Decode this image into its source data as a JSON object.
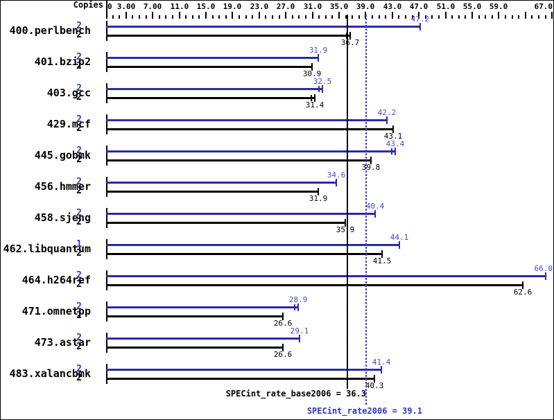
{
  "chart_data": {
    "type": "bar",
    "orientation": "horizontal",
    "copies_header": "Copies",
    "axis": {
      "min": 0,
      "max": 67,
      "minor_tick_step": 1,
      "labels": [
        {
          "v": 0,
          "t": "0"
        },
        {
          "v": 3,
          "t": "3.00"
        },
        {
          "v": 7,
          "t": "7.00"
        },
        {
          "v": 11,
          "t": "11.0"
        },
        {
          "v": 15,
          "t": "15.0"
        },
        {
          "v": 19,
          "t": "19.0"
        },
        {
          "v": 23,
          "t": "23.0"
        },
        {
          "v": 27,
          "t": "27.0"
        },
        {
          "v": 31,
          "t": "31.0"
        },
        {
          "v": 35,
          "t": "35.0"
        },
        {
          "v": 39,
          "t": "39.0"
        },
        {
          "v": 43,
          "t": "43.0"
        },
        {
          "v": 47,
          "t": "47.0"
        },
        {
          "v": 51,
          "t": "51.0"
        },
        {
          "v": 55,
          "t": "55.0"
        },
        {
          "v": 59,
          "t": "59.0"
        },
        {
          "v": 67,
          "t": "67.0"
        }
      ]
    },
    "benchmarks": [
      {
        "name": "400.perlbench",
        "peak": {
          "copies": "2",
          "value": 47.2,
          "label": "47.2"
        },
        "base": {
          "copies": "2",
          "value": 36.7,
          "label": "36.7",
          "double_tick": true
        }
      },
      {
        "name": "401.bzip2",
        "peak": {
          "copies": "2",
          "value": 31.9,
          "label": "31.9"
        },
        "base": {
          "copies": "2",
          "value": 30.9,
          "label": "30.9"
        }
      },
      {
        "name": "403.gcc",
        "peak": {
          "copies": "2",
          "value": 32.5,
          "label": "32.5",
          "double_tick": true
        },
        "base": {
          "copies": "2",
          "value": 31.4,
          "label": "31.4",
          "double_tick": true
        }
      },
      {
        "name": "429.mcf",
        "peak": {
          "copies": "2",
          "value": 42.2,
          "label": "42.2"
        },
        "base": {
          "copies": "2",
          "value": 43.1,
          "label": "43.1"
        }
      },
      {
        "name": "445.gobmk",
        "peak": {
          "copies": "2",
          "value": 43.4,
          "label": "43.4",
          "double_tick": true
        },
        "base": {
          "copies": "2",
          "value": 39.8,
          "label": "39.8"
        }
      },
      {
        "name": "456.hmmer",
        "peak": {
          "copies": "2",
          "value": 34.6,
          "label": "34.6"
        },
        "base": {
          "copies": "2",
          "value": 31.9,
          "label": "31.9"
        }
      },
      {
        "name": "458.sjeng",
        "peak": {
          "copies": "2",
          "value": 40.4,
          "label": "40.4"
        },
        "base": {
          "copies": "2",
          "value": 35.9,
          "label": "35.9"
        }
      },
      {
        "name": "462.libquantum",
        "peak": {
          "copies": "1",
          "value": 44.1,
          "label": "44.1"
        },
        "base": {
          "copies": "2",
          "value": 41.5,
          "label": "41.5"
        }
      },
      {
        "name": "464.h264ref",
        "peak": {
          "copies": "2",
          "value": 66.0,
          "label": "66.0"
        },
        "base": {
          "copies": "2",
          "value": 62.6,
          "label": "62.6"
        }
      },
      {
        "name": "471.omnetpp",
        "peak": {
          "copies": "2",
          "value": 28.9,
          "label": "28.9",
          "double_tick": true
        },
        "base": {
          "copies": "2",
          "value": 26.6,
          "label": "26.6"
        }
      },
      {
        "name": "473.astar",
        "peak": {
          "copies": "2",
          "value": 29.1,
          "label": "29.1"
        },
        "base": {
          "copies": "2",
          "value": 26.6,
          "label": "26.6"
        }
      },
      {
        "name": "483.xalancbmk",
        "peak": {
          "copies": "2",
          "value": 41.4,
          "label": "41.4"
        },
        "base": {
          "copies": "2",
          "value": 40.3,
          "label": "40.3"
        }
      }
    ],
    "reference_lines": [
      {
        "id": "base",
        "style": "solid",
        "value": 36.3,
        "label": "SPECint_rate_base2006 = 36.3",
        "color": "#000000"
      },
      {
        "id": "peak",
        "style": "dotted",
        "value": 39.1,
        "label": "SPECint_rate2006 = 39.1",
        "color": "#4040d0"
      }
    ],
    "colors": {
      "peak_bar": "#2a2aaa",
      "base_bar": "#000000",
      "peak_value_text": "#4747cd",
      "base_value_text": "#000000",
      "peak_copies_text": "#3333b8",
      "base_copies_text": "#000000",
      "peak_summary_text": "#3333c0",
      "base_summary_text": "#000000"
    }
  }
}
